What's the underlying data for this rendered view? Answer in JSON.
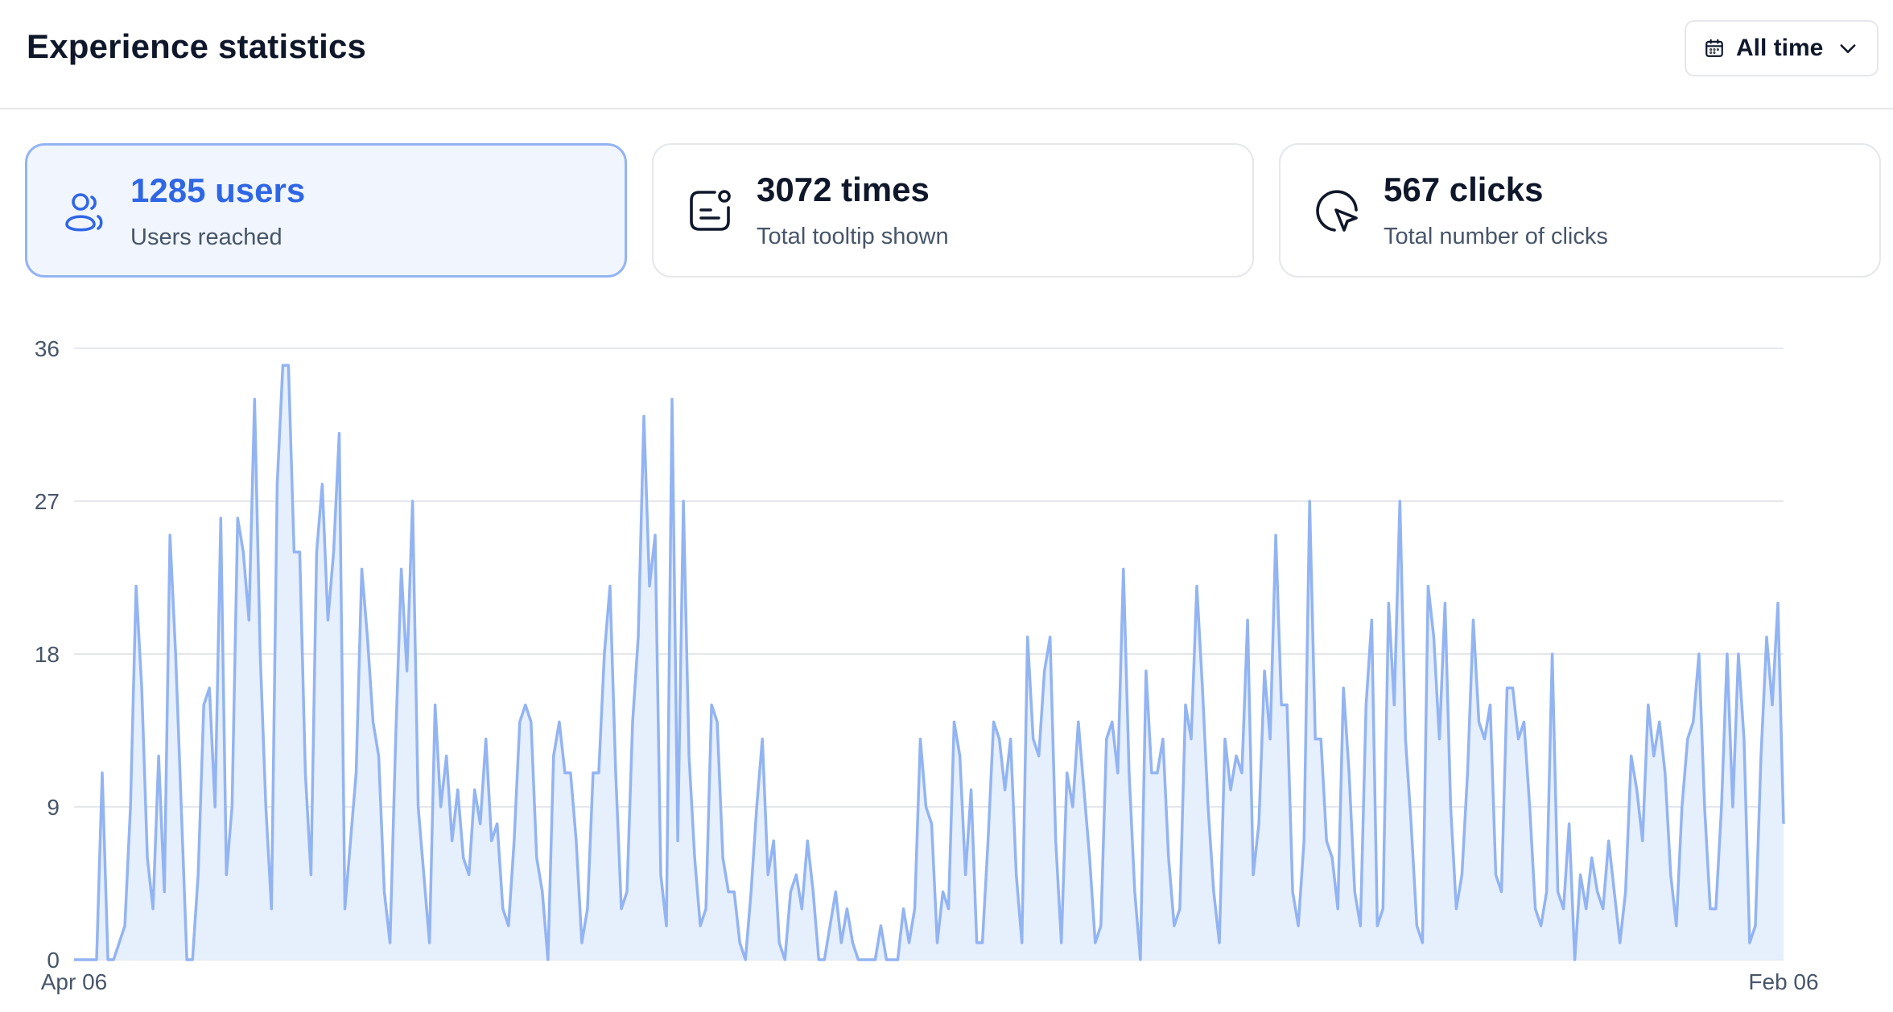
{
  "header": {
    "title": "Experience statistics"
  },
  "range": {
    "label": "All time"
  },
  "cards": [
    {
      "value": "1285 users",
      "caption": "Users reached"
    },
    {
      "value": "3072 times",
      "caption": "Total tooltip shown"
    },
    {
      "value": "567 clicks",
      "caption": "Total number of clicks"
    }
  ],
  "colors": {
    "accent": "#2f66e6",
    "line": "#93b4f3",
    "fill": "#e6effc",
    "grid": "#e5e7eb"
  },
  "chart_data": {
    "type": "area",
    "title": "",
    "xlabel": "",
    "ylabel": "",
    "x_start": "Apr 06",
    "x_end": "Feb 06",
    "x_ticks": [
      "Apr 06",
      "Feb 06"
    ],
    "y_ticks": [
      0,
      9,
      18,
      27,
      36
    ],
    "ylim": [
      0,
      36
    ],
    "grid": true,
    "series": [
      {
        "values": [
          0,
          0,
          0,
          0,
          0,
          11,
          0,
          0,
          1,
          2,
          9,
          22,
          16,
          6,
          3,
          12,
          4,
          25,
          18,
          9,
          0,
          0,
          5,
          15,
          16,
          9,
          26,
          5,
          9,
          26,
          24,
          20,
          33,
          18,
          9,
          3,
          28,
          35,
          35,
          24,
          24,
          11,
          5,
          24,
          28,
          20,
          24,
          31,
          3,
          7,
          11,
          23,
          19,
          14,
          12,
          4,
          1,
          13,
          23,
          17,
          27,
          9,
          5,
          1,
          15,
          9,
          12,
          7,
          10,
          6,
          5,
          10,
          8,
          13,
          7,
          8,
          3,
          2,
          7,
          14,
          15,
          14,
          6,
          4,
          0,
          12,
          14,
          11,
          11,
          7,
          1,
          3,
          11,
          11,
          18,
          22,
          11,
          3,
          4,
          14,
          19,
          32,
          22,
          25,
          5,
          2,
          33,
          7,
          27,
          12,
          6,
          2,
          3,
          15,
          14,
          6,
          4,
          4,
          1,
          0,
          4,
          9,
          13,
          5,
          7,
          1,
          0,
          4,
          5,
          3,
          7,
          4,
          0,
          0,
          2,
          4,
          1,
          3,
          1,
          0,
          0,
          0,
          0,
          2,
          0,
          0,
          0,
          3,
          1,
          3,
          13,
          9,
          8,
          1,
          4,
          3,
          14,
          12,
          5,
          10,
          1,
          1,
          7,
          14,
          13,
          10,
          13,
          5,
          1,
          19,
          13,
          12,
          17,
          19,
          7,
          1,
          11,
          9,
          14,
          10,
          6,
          1,
          2,
          13,
          14,
          11,
          23,
          11,
          4,
          0,
          17,
          11,
          11,
          13,
          6,
          2,
          3,
          15,
          13,
          22,
          16,
          9,
          4,
          1,
          13,
          10,
          12,
          11,
          20,
          5,
          8,
          17,
          13,
          25,
          15,
          15,
          4,
          2,
          7,
          27,
          13,
          13,
          7,
          6,
          3,
          16,
          11,
          4,
          2,
          15,
          20,
          2,
          3,
          21,
          15,
          27,
          13,
          8,
          2,
          1,
          22,
          19,
          13,
          21,
          9,
          3,
          5,
          11,
          20,
          14,
          13,
          15,
          5,
          4,
          16,
          16,
          13,
          14,
          9,
          3,
          2,
          4,
          18,
          4,
          3,
          8,
          0,
          5,
          3,
          6,
          4,
          3,
          7,
          4,
          1,
          4,
          12,
          10,
          7,
          15,
          12,
          14,
          11,
          5,
          2,
          9,
          13,
          14,
          18,
          9,
          3,
          3,
          9,
          18,
          9,
          18,
          13,
          1,
          2,
          12,
          19,
          15,
          21,
          8
        ]
      }
    ]
  }
}
